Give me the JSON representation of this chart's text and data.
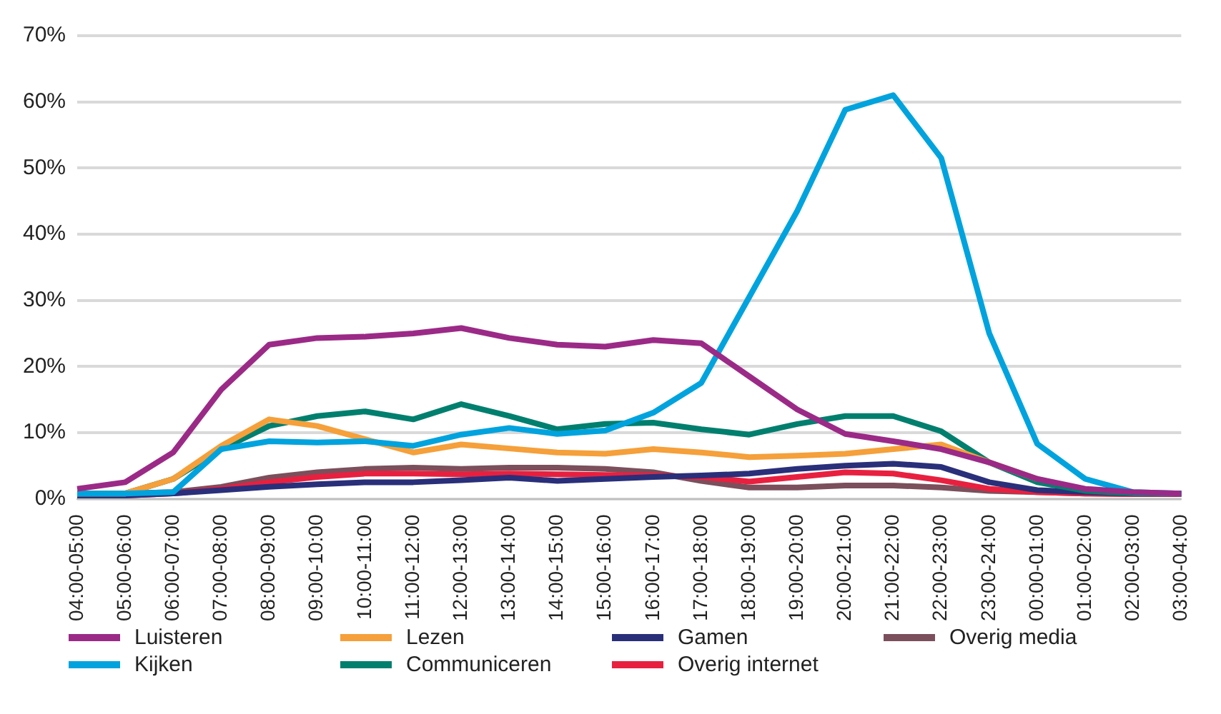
{
  "chart_data": {
    "type": "line",
    "categories": [
      "04:00-05:00",
      "05:00-06:00",
      "06:00-07:00",
      "07:00-08:00",
      "08:00-09:00",
      "09:00-10:00",
      "10:00-11:00",
      "11:00-12:00",
      "12:00-13:00",
      "13:00-14:00",
      "14:00-15:00",
      "15:00-16:00",
      "16:00-17:00",
      "17:00-18:00",
      "18:00-19:00",
      "19:00-20:00",
      "20:00-21:00",
      "21:00-22:00",
      "22:00-23:00",
      "23:00-24:00",
      "00:00-01:00",
      "01:00-02:00",
      "02:00-03:00",
      "03:00-04:00"
    ],
    "series": [
      {
        "name": "Luisteren",
        "color": "#9b2a87",
        "values": [
          1.5,
          2.5,
          7,
          16.5,
          23.3,
          24.3,
          24.5,
          25,
          25.8,
          24.3,
          23.3,
          23,
          24,
          23.5,
          18.5,
          13.5,
          9.8,
          8.7,
          7.5,
          5.5,
          3,
          1.5,
          1,
          0.8
        ]
      },
      {
        "name": "Kijken",
        "color": "#00a3dd",
        "values": [
          0.8,
          0.8,
          1,
          7.5,
          8.7,
          8.5,
          8.7,
          8,
          9.7,
          10.7,
          9.8,
          10.3,
          13,
          17.5,
          30.5,
          43.5,
          58.8,
          61,
          51.5,
          25,
          8.3,
          3,
          1,
          0.8
        ]
      },
      {
        "name": "Lezen",
        "color": "#f5a03a",
        "values": [
          0.8,
          0.8,
          3,
          8,
          12,
          11,
          9,
          7,
          8.2,
          7.6,
          7,
          6.8,
          7.5,
          7,
          6.3,
          6.5,
          6.8,
          7.5,
          8.2,
          5.5,
          3,
          null,
          null,
          null
        ]
      },
      {
        "name": "Communiceren",
        "color": "#007f6e",
        "values": [
          0.8,
          0.8,
          3,
          7.5,
          11,
          12.5,
          13.2,
          12,
          14.3,
          12.5,
          10.5,
          11.3,
          11.5,
          10.5,
          9.7,
          11.3,
          12.5,
          12.5,
          10.2,
          5.5,
          2.5,
          1.2,
          0.8,
          0.8
        ]
      },
      {
        "name": "Gamen",
        "color": "#2a2f7a",
        "values": [
          0.5,
          0.5,
          0.8,
          1.3,
          1.8,
          2.2,
          2.5,
          2.5,
          2.8,
          3.2,
          2.7,
          3,
          3.3,
          3.5,
          3.8,
          4.5,
          5,
          5.3,
          4.8,
          2.5,
          1.3,
          1,
          0.8,
          0.8
        ]
      },
      {
        "name": "Overig internet",
        "color": "#e8203f",
        "values": [
          0.5,
          0.5,
          0.8,
          1.5,
          2.5,
          3.3,
          3.8,
          3.8,
          3.7,
          3.8,
          3.7,
          3.6,
          3.5,
          3.3,
          2.6,
          3.3,
          4,
          3.8,
          2.8,
          1.5,
          1,
          0.8,
          0.7,
          0.7
        ]
      },
      {
        "name": "Overig media",
        "color": "#7b4f5c",
        "values": [
          0.8,
          0.8,
          1,
          1.8,
          3.2,
          4,
          4.5,
          4.7,
          4.5,
          4.7,
          4.7,
          4.5,
          4,
          2.7,
          1.7,
          1.7,
          2,
          2,
          1.7,
          1.2,
          1,
          0.8,
          0.7,
          0.7
        ]
      }
    ],
    "ylim": [
      0,
      70
    ],
    "yticks": [
      {
        "value": 0,
        "label": "0%"
      },
      {
        "value": 10,
        "label": "10%"
      },
      {
        "value": 20,
        "label": "20%"
      },
      {
        "value": 30,
        "label": "30%"
      },
      {
        "value": 40,
        "label": "40%"
      },
      {
        "value": 50,
        "label": "50%"
      },
      {
        "value": 60,
        "label": "60%"
      },
      {
        "value": 70,
        "label": "70%"
      }
    ],
    "grid": "y",
    "legend": "bottom",
    "marker": "none",
    "line_style": "solid"
  }
}
